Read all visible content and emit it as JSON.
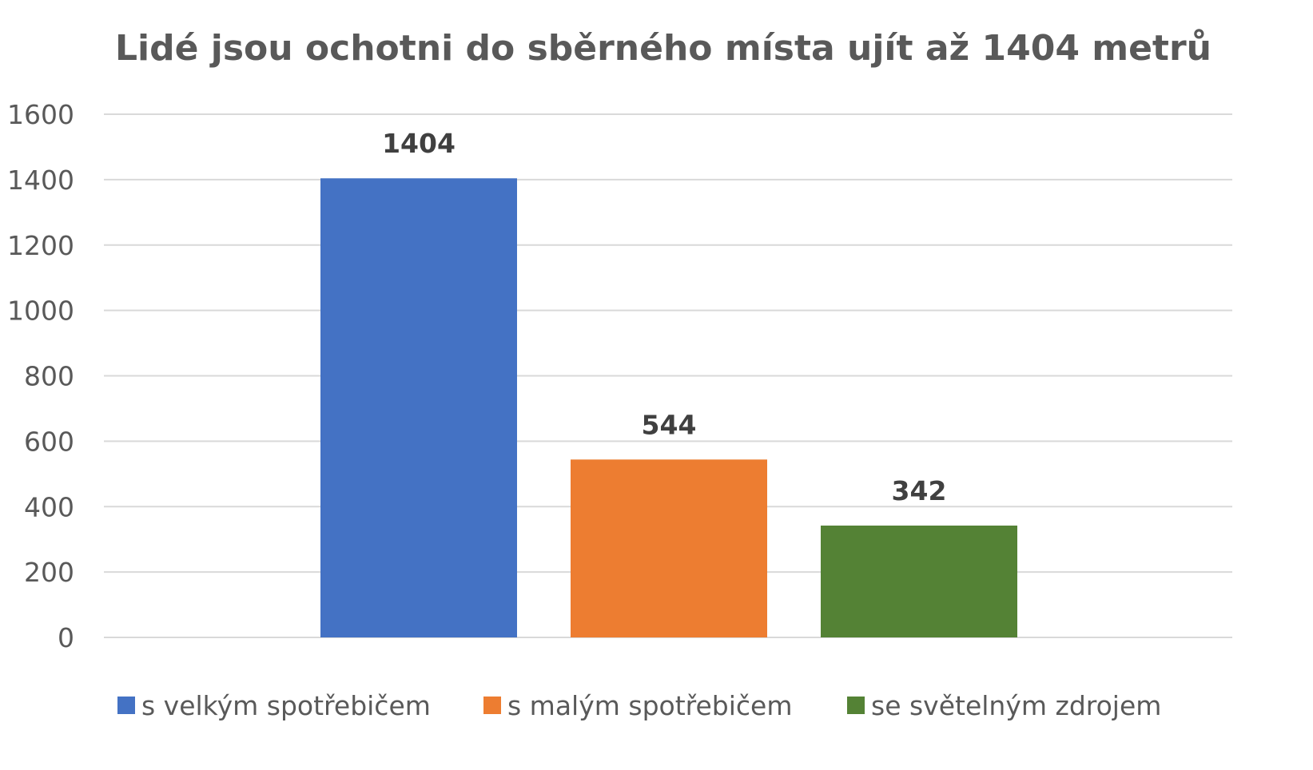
{
  "chart_data": {
    "type": "bar",
    "title": "Lidé jsou ochotni do sběrného místa ujít až 1404 metrů",
    "categories": [
      "s velkým spotřebičem",
      "s malým spotřebičem",
      "se světelným zdrojem"
    ],
    "values": [
      1404,
      544,
      342
    ],
    "data_labels": [
      "1404",
      "544",
      "342"
    ],
    "colors": [
      "#4472C4",
      "#ED7D31",
      "#548235"
    ],
    "ylim": [
      0,
      1600
    ],
    "y_ticks": [
      0,
      200,
      400,
      600,
      800,
      1000,
      1200,
      1400,
      1600
    ],
    "y_tick_labels": [
      "0",
      "200",
      "400",
      "600",
      "800",
      "1000",
      "1200",
      "1400",
      "1600"
    ],
    "grid": true,
    "legend": {
      "position": "bottom",
      "entries": [
        "s velkým spotřebičem",
        "s malým spotřebičem",
        "se světelným zdrojem"
      ]
    },
    "xlabel": "",
    "ylabel": ""
  }
}
